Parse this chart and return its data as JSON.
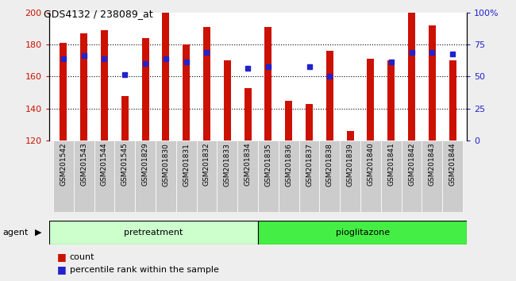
{
  "title": "GDS4132 / 238089_at",
  "categories": [
    "GSM201542",
    "GSM201543",
    "GSM201544",
    "GSM201545",
    "GSM201829",
    "GSM201830",
    "GSM201831",
    "GSM201832",
    "GSM201833",
    "GSM201834",
    "GSM201835",
    "GSM201836",
    "GSM201837",
    "GSM201838",
    "GSM201839",
    "GSM201840",
    "GSM201841",
    "GSM201842",
    "GSM201843",
    "GSM201844"
  ],
  "bar_values": [
    181,
    187,
    189,
    148,
    184,
    200,
    180,
    191,
    170,
    153,
    191,
    145,
    143,
    176,
    126,
    171,
    170,
    200,
    192,
    170
  ],
  "blue_dots": [
    171,
    173,
    171,
    161,
    168,
    171,
    169,
    175,
    null,
    165,
    166,
    null,
    166,
    160,
    null,
    null,
    169,
    175,
    175,
    174
  ],
  "bar_color": "#cc1100",
  "dot_color": "#2222cc",
  "ymin": 120,
  "ymax": 200,
  "yticks": [
    120,
    140,
    160,
    180,
    200
  ],
  "right_yticks": [
    0,
    25,
    50,
    75,
    100
  ],
  "pretreatment_count": 10,
  "group_labels": [
    "pretreatment",
    "pioglitazone"
  ],
  "light_green": "#ccffcc",
  "dark_green": "#44ee44",
  "dark_strip_color": "#111111",
  "tick_bg_color": "#cccccc",
  "fig_bg_color": "#eeeeee",
  "plot_bg": "#ffffff",
  "bar_width": 0.35,
  "agent_label": "agent",
  "legend_count_label": "count",
  "legend_pct_label": "percentile rank within the sample"
}
